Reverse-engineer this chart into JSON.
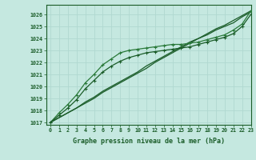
{
  "background_color": "#c5e8e0",
  "grid_color": "#b0d8d0",
  "line_color_dark": "#1a5c28",
  "line_color_mid": "#2a7a3a",
  "xlabel": "Graphe pression niveau de la mer (hPa)",
  "xlim": [
    -0.5,
    23
  ],
  "ylim": [
    1016.8,
    1026.8
  ],
  "yticks": [
    1017,
    1018,
    1019,
    1020,
    1021,
    1022,
    1023,
    1024,
    1025,
    1026
  ],
  "xticks": [
    0,
    1,
    2,
    3,
    4,
    5,
    6,
    7,
    8,
    9,
    10,
    11,
    12,
    13,
    14,
    15,
    16,
    17,
    18,
    19,
    20,
    21,
    22,
    23
  ],
  "series_linear1": [
    1017.0,
    1017.4,
    1017.8,
    1018.2,
    1018.7,
    1019.1,
    1019.6,
    1020.0,
    1020.4,
    1020.8,
    1021.2,
    1021.7,
    1022.1,
    1022.5,
    1022.9,
    1023.3,
    1023.7,
    1024.0,
    1024.4,
    1024.8,
    1025.1,
    1025.5,
    1025.9,
    1026.3
  ],
  "series_linear2": [
    1017.0,
    1017.4,
    1017.8,
    1018.2,
    1018.6,
    1019.0,
    1019.5,
    1019.9,
    1020.3,
    1020.7,
    1021.1,
    1021.5,
    1022.0,
    1022.4,
    1022.8,
    1023.2,
    1023.6,
    1024.0,
    1024.3,
    1024.7,
    1025.0,
    1025.3,
    1025.8,
    1026.2
  ],
  "series_bulge1": [
    1017.0,
    1017.8,
    1018.5,
    1019.3,
    1020.3,
    1021.0,
    1021.8,
    1022.3,
    1022.8,
    1023.0,
    1023.1,
    1023.2,
    1023.3,
    1023.4,
    1023.5,
    1023.5,
    1023.6,
    1023.7,
    1023.9,
    1024.1,
    1024.3,
    1024.7,
    1025.2,
    1026.3
  ],
  "series_bulge2": [
    1017.0,
    1017.6,
    1018.2,
    1018.9,
    1019.8,
    1020.5,
    1021.2,
    1021.7,
    1022.1,
    1022.4,
    1022.6,
    1022.8,
    1022.9,
    1023.0,
    1023.1,
    1023.2,
    1023.3,
    1023.5,
    1023.7,
    1023.9,
    1024.1,
    1024.4,
    1025.0,
    1026.0
  ]
}
